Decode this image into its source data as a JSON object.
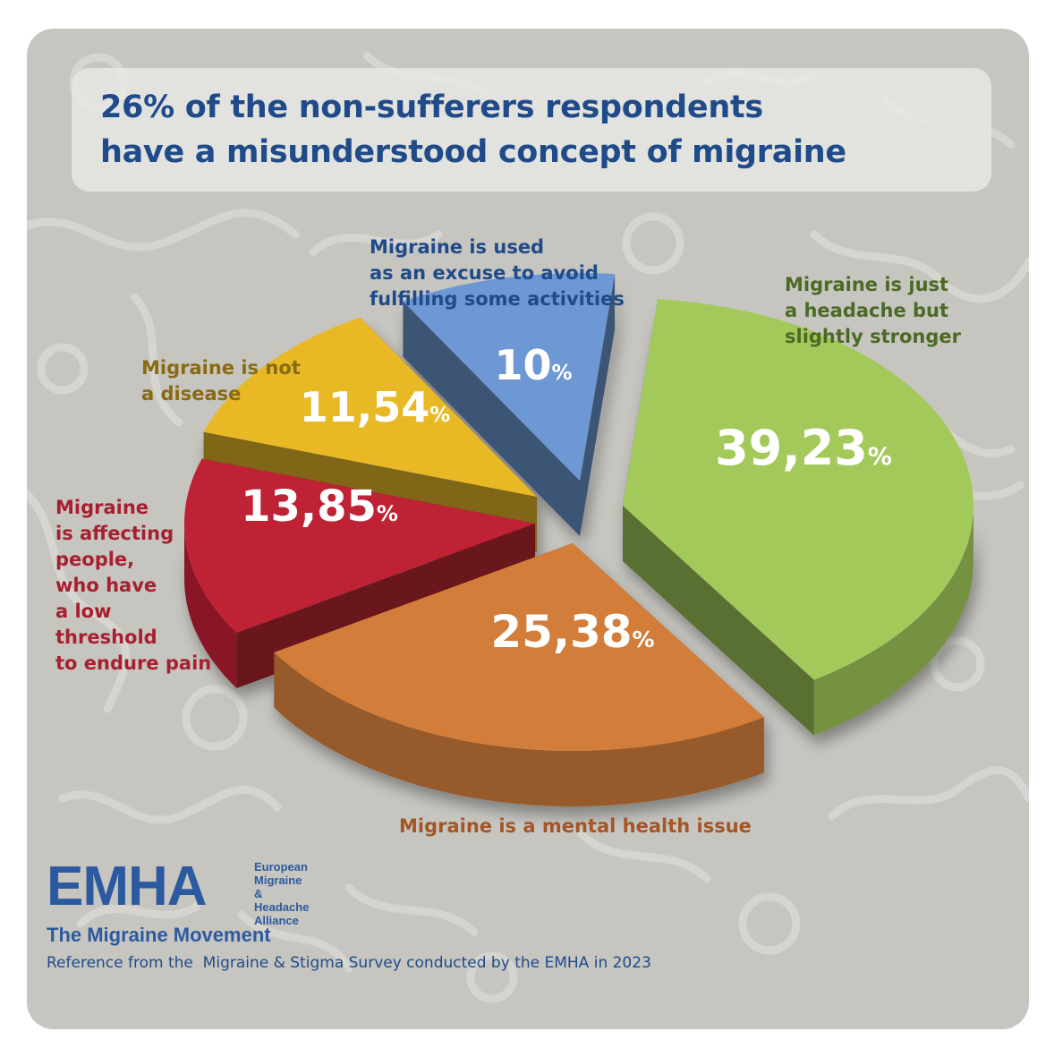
{
  "title": {
    "line1": "26% of the non-sufferers respondents",
    "line2": "have a misunderstood concept of migraine"
  },
  "colors": {
    "background": "#c6c5c0",
    "title": "#1f4b8a",
    "green": "#a3c95b",
    "orange": "#d27d3a",
    "red": "#be2234",
    "yellow": "#e8b924",
    "blue": "#6e98d4"
  },
  "chart_data": {
    "type": "pie",
    "style": "3d-exploded",
    "unit": "%",
    "slices": [
      {
        "label": "Migraine is just\na headache but\nslightly stronger",
        "value": 39.23,
        "display": "39,23",
        "color": "#a3c95b"
      },
      {
        "label": "Migraine is a mental health issue",
        "value": 25.38,
        "display": "25,38",
        "color": "#d27d3a"
      },
      {
        "label": "Migraine\nis affecting\npeople,\nwho have\na low\nthreshold\nto endure pain",
        "value": 13.85,
        "display": "13,85",
        "color": "#be2234"
      },
      {
        "label": "Migraine is not\na disease",
        "value": 11.54,
        "display": "11,54",
        "color": "#e8b924"
      },
      {
        "label": "Migraine is used\nas an excuse to avoid\nfulfilling some activities",
        "value": 10,
        "display": "10",
        "color": "#6e98d4"
      }
    ]
  },
  "logo": {
    "mark": "EMHA",
    "sub": "European\nMigraine &\nHeadache\nAlliance"
  },
  "tagline": "The Migraine Movement",
  "reference": "Reference from the  Migraine & Stigma Survey conducted by the EMHA in 2023"
}
